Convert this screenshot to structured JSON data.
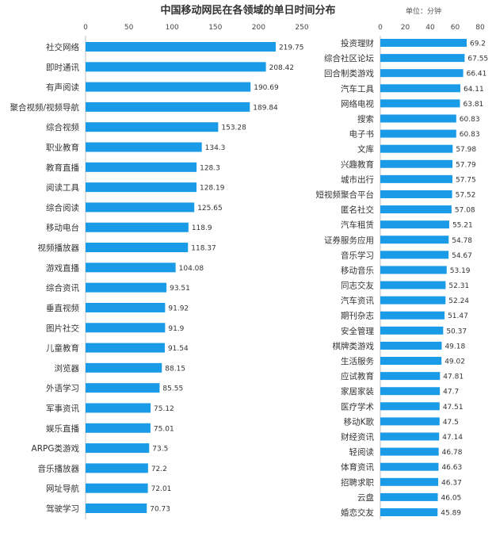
{
  "title": "中国移动网民在各领域的单日时间分布",
  "unit_label": "单位：分钟",
  "colors": {
    "bar": "#1a9be8",
    "axis": "#bfbfbf",
    "text": "#333333"
  },
  "chart_data": [
    {
      "type": "bar",
      "orientation": "horizontal",
      "xlim": [
        0,
        250
      ],
      "ticks": [
        0,
        50,
        100,
        150,
        200,
        250
      ],
      "categories": [
        "社交网络",
        "即时通讯",
        "有声阅读",
        "聚合视频/视频导航",
        "综合视频",
        "职业教育",
        "教育直播",
        "阅读工具",
        "综合阅读",
        "移动电台",
        "视频播放器",
        "游戏直播",
        "综合资讯",
        "垂直视频",
        "图片社交",
        "儿童教育",
        "浏览器",
        "外语学习",
        "军事资讯",
        "娱乐直播",
        "ARPG类游戏",
        "音乐播放器",
        "网址导航",
        "驾驶学习"
      ],
      "values": [
        219.75,
        208.42,
        190.69,
        189.84,
        153.28,
        134.3,
        128.3,
        128.19,
        125.65,
        118.9,
        118.37,
        104.08,
        93.51,
        91.92,
        91.9,
        91.54,
        88.15,
        85.55,
        75.12,
        75.01,
        73.5,
        72.2,
        72.01,
        70.73
      ]
    },
    {
      "type": "bar",
      "orientation": "horizontal",
      "xlim": [
        0,
        80
      ],
      "ticks": [
        0,
        20,
        40,
        60,
        80
      ],
      "categories": [
        "投资理财",
        "综合社区论坛",
        "回合制类游戏",
        "汽车工具",
        "网络电视",
        "搜索",
        "电子书",
        "文库",
        "兴趣教育",
        "城市出行",
        "短视频聚合平台",
        "匿名社交",
        "汽车租赁",
        "证券服务应用",
        "音乐学习",
        "移动音乐",
        "同志交友",
        "汽车资讯",
        "期刊杂志",
        "安全管理",
        "棋牌类游戏",
        "生活服务",
        "应试教育",
        "家居家装",
        "医疗学术",
        "移动K歌",
        "财经资讯",
        "轻阅读",
        "体育资讯",
        "招聘求职",
        "云盘",
        "婚恋交友"
      ],
      "values": [
        69.2,
        67.55,
        66.41,
        64.11,
        63.81,
        60.83,
        60.83,
        57.98,
        57.79,
        57.75,
        57.52,
        57.08,
        55.21,
        54.78,
        54.67,
        53.19,
        52.31,
        52.24,
        51.47,
        50.37,
        49.18,
        49.02,
        47.81,
        47.7,
        47.51,
        47.5,
        47.14,
        46.78,
        46.63,
        46.37,
        46.05,
        45.89
      ]
    }
  ]
}
